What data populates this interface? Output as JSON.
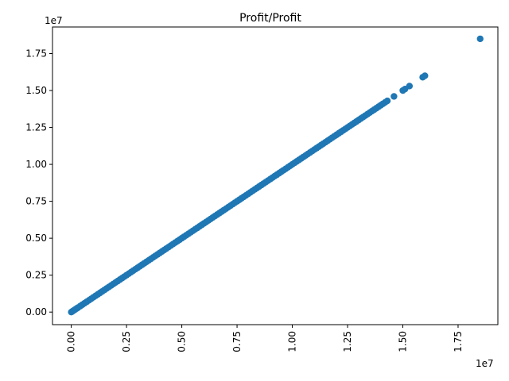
{
  "chart_data": {
    "type": "scatter",
    "title": "Profit/Profit",
    "xlabel": "",
    "ylabel": "",
    "x_offset_text": "1e7",
    "y_offset_text": "1e7",
    "x_tick_values": [
      0,
      2500000,
      5000000,
      7500000,
      10000000,
      12500000,
      15000000,
      17500000
    ],
    "x_tick_labels": [
      "0.00",
      "0.25",
      "0.50",
      "0.75",
      "1.00",
      "1.25",
      "1.50",
      "1.75"
    ],
    "y_tick_values": [
      0,
      2500000,
      5000000,
      7500000,
      10000000,
      12500000,
      15000000,
      17500000
    ],
    "y_tick_labels": [
      "0.00",
      "0.25",
      "0.50",
      "0.75",
      "1.00",
      "1.25",
      "1.50",
      "1.75"
    ],
    "xlim": [
      -850000,
      19300000
    ],
    "ylim": [
      -850000,
      19300000
    ],
    "grid": false,
    "legend": "none",
    "marker_color": "#1f77b4",
    "series": [
      {
        "x": [
          0,
          50000,
          100000,
          150000,
          200000,
          250000,
          300000,
          400000,
          500000,
          600000,
          700000,
          800000,
          900000,
          1000000,
          1100000,
          1200000,
          1300000,
          1400000,
          1500000,
          1600000,
          1700000,
          1800000,
          1900000,
          2000000,
          2100000,
          2200000,
          2300000,
          2400000,
          2500000,
          2600000,
          2700000,
          2800000,
          2900000,
          3000000,
          3100000,
          3200000,
          3300000,
          3400000,
          3500000,
          3600000,
          3700000,
          3800000,
          3900000,
          4000000,
          4100000,
          4200000,
          4300000,
          4400000,
          4500000,
          4600000,
          4700000,
          4800000,
          4900000,
          5000000,
          5100000,
          5200000,
          5300000,
          5400000,
          5500000,
          5600000,
          5700000,
          5800000,
          5900000,
          6000000,
          6100000,
          6200000,
          6300000,
          6400000,
          6500000,
          6600000,
          6700000,
          6800000,
          6900000,
          7000000,
          7100000,
          7200000,
          7300000,
          7400000,
          7500000,
          7600000,
          7700000,
          7800000,
          7900000,
          8000000,
          8100000,
          8200000,
          8300000,
          8400000,
          8500000,
          8600000,
          8700000,
          8800000,
          8900000,
          9000000,
          9100000,
          9200000,
          9300000,
          9400000,
          9500000,
          9600000,
          9700000,
          9800000,
          9900000,
          10000000,
          10100000,
          10200000,
          10300000,
          10400000,
          10500000,
          10600000,
          10700000,
          10800000,
          10900000,
          11000000,
          11100000,
          11200000,
          11300000,
          11400000,
          11500000,
          11600000,
          11700000,
          11800000,
          11900000,
          12000000,
          12100000,
          12200000,
          12300000,
          12400000,
          12500000,
          12600000,
          12700000,
          12800000,
          12900000,
          13000000,
          13100000,
          13200000,
          13300000,
          13400000,
          13500000,
          13600000,
          13700000,
          13800000,
          13900000,
          14000000,
          14100000,
          14200000,
          14300000,
          14600000,
          15000000,
          15100000,
          15300000,
          15900000,
          16000000,
          18500000
        ],
        "y": [
          0,
          50000,
          100000,
          150000,
          200000,
          250000,
          300000,
          400000,
          500000,
          600000,
          700000,
          800000,
          900000,
          1000000,
          1100000,
          1200000,
          1300000,
          1400000,
          1500000,
          1600000,
          1700000,
          1800000,
          1900000,
          2000000,
          2100000,
          2200000,
          2300000,
          2400000,
          2500000,
          2600000,
          2700000,
          2800000,
          2900000,
          3000000,
          3100000,
          3200000,
          3300000,
          3400000,
          3500000,
          3600000,
          3700000,
          3800000,
          3900000,
          4000000,
          4100000,
          4200000,
          4300000,
          4400000,
          4500000,
          4600000,
          4700000,
          4800000,
          4900000,
          5000000,
          5100000,
          5200000,
          5300000,
          5400000,
          5500000,
          5600000,
          5700000,
          5800000,
          5900000,
          6000000,
          6100000,
          6200000,
          6300000,
          6400000,
          6500000,
          6600000,
          6700000,
          6800000,
          6900000,
          7000000,
          7100000,
          7200000,
          7300000,
          7400000,
          7500000,
          7600000,
          7700000,
          7800000,
          7900000,
          8000000,
          8100000,
          8200000,
          8300000,
          8400000,
          8500000,
          8600000,
          8700000,
          8800000,
          8900000,
          9000000,
          9100000,
          9200000,
          9300000,
          9400000,
          9500000,
          9600000,
          9700000,
          9800000,
          9900000,
          10000000,
          10100000,
          10200000,
          10300000,
          10400000,
          10500000,
          10600000,
          10700000,
          10800000,
          10900000,
          11000000,
          11100000,
          11200000,
          11300000,
          11400000,
          11500000,
          11600000,
          11700000,
          11800000,
          11900000,
          12000000,
          12100000,
          12200000,
          12300000,
          12400000,
          12500000,
          12600000,
          12700000,
          12800000,
          12900000,
          13000000,
          13100000,
          13200000,
          13300000,
          13400000,
          13500000,
          13600000,
          13700000,
          13800000,
          13900000,
          14000000,
          14100000,
          14200000,
          14300000,
          14600000,
          15000000,
          15100000,
          15300000,
          15900000,
          16000000,
          18500000
        ]
      }
    ]
  }
}
